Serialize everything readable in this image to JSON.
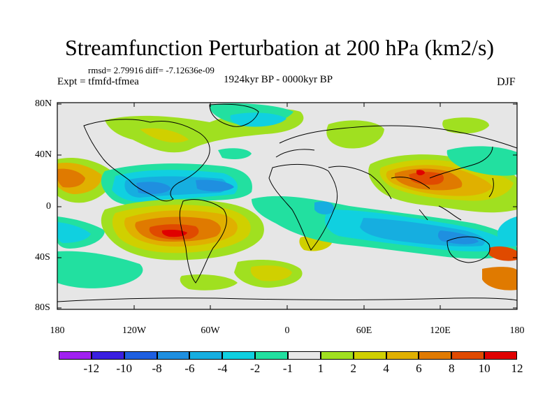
{
  "title": "Streamfunction Perturbation at 200 hPa (km2/s)",
  "stats": "rmsd= 2.79916 diff= -7.12636e-09",
  "experiment": "Expt = tfmfd-tfmea",
  "period": "1924kyr BP - 0000kyr BP",
  "season": "DJF",
  "lat_labels": [
    "80N",
    "40N",
    "0",
    "40S",
    "80S"
  ],
  "lon_labels": [
    "180",
    "120W",
    "60W",
    "0",
    "60E",
    "120E",
    "180"
  ],
  "colorbar": {
    "labels": [
      "-12",
      "-10",
      "-8",
      "-6",
      "-4",
      "-2",
      "-1",
      "1",
      "2",
      "4",
      "6",
      "8",
      "10",
      "12"
    ],
    "colors": [
      "#a020f0",
      "#3a1fe0",
      "#1e5fe0",
      "#1f8fe0",
      "#16aee0",
      "#10d0e0",
      "#22e0a0",
      "#e8e8e8",
      "#a0e020",
      "#d0d000",
      "#e0b000",
      "#e07a00",
      "#e04a00",
      "#e00000"
    ]
  },
  "field_colors": {
    "n_m8": "#1f8fe0",
    "n_m6": "#16aee0",
    "n_m4": "#10d0e0",
    "n_m2": "#22e0a0",
    "p_1": "#a0e020",
    "p_2": "#d0d000",
    "p_4": "#e0b000",
    "p_6": "#e07a00",
    "p_8": "#e04a00",
    "p_10": "#e00000"
  }
}
